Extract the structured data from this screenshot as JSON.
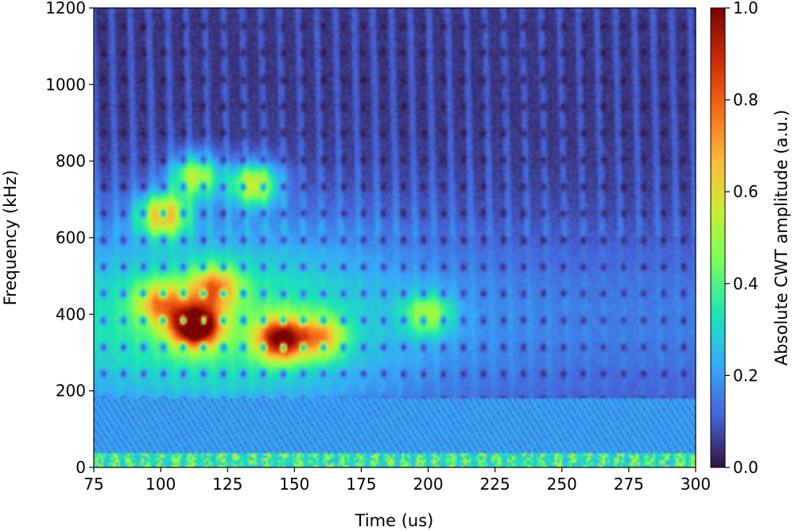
{
  "chart_data": {
    "type": "heatmap",
    "title": "",
    "xlabel": "Time (us)",
    "ylabel": "Frequency (kHz)",
    "colorbar_label": "Absolute CWT amplitude (a.u.)",
    "xlim": [
      75,
      300
    ],
    "ylim": [
      0,
      1200
    ],
    "clim": [
      0.0,
      1.0
    ],
    "x_ticks": [
      75,
      100,
      125,
      150,
      175,
      200,
      225,
      250,
      275,
      300
    ],
    "y_ticks": [
      0,
      200,
      400,
      600,
      800,
      1000,
      1200
    ],
    "colorbar_ticks": [
      "0.0",
      "0.2",
      "0.4",
      "0.6",
      "0.8",
      "1.0"
    ],
    "colormap": "turbo",
    "colormap_stops": [
      "#30123b",
      "#4662d7",
      "#36aaf9",
      "#1ae4b6",
      "#72fe5e",
      "#c8ef34",
      "#faba39",
      "#f66b19",
      "#ca2a04",
      "#7a0403"
    ],
    "grid": false,
    "hotspots": [
      {
        "time": 113,
        "frequency": 370,
        "amplitude": 1.0
      },
      {
        "time": 145,
        "frequency": 335,
        "amplitude": 0.8
      },
      {
        "time": 101,
        "frequency": 660,
        "amplitude": 0.6
      },
      {
        "time": 113,
        "frequency": 760,
        "amplitude": 0.5
      },
      {
        "time": 135,
        "frequency": 740,
        "amplitude": 0.55
      },
      {
        "time": 120,
        "frequency": 470,
        "amplitude": 0.5
      },
      {
        "time": 100,
        "frequency": 430,
        "amplitude": 0.45
      },
      {
        "time": 160,
        "frequency": 340,
        "amplitude": 0.45
      },
      {
        "time": 200,
        "frequency": 400,
        "amplitude": 0.35
      }
    ]
  }
}
